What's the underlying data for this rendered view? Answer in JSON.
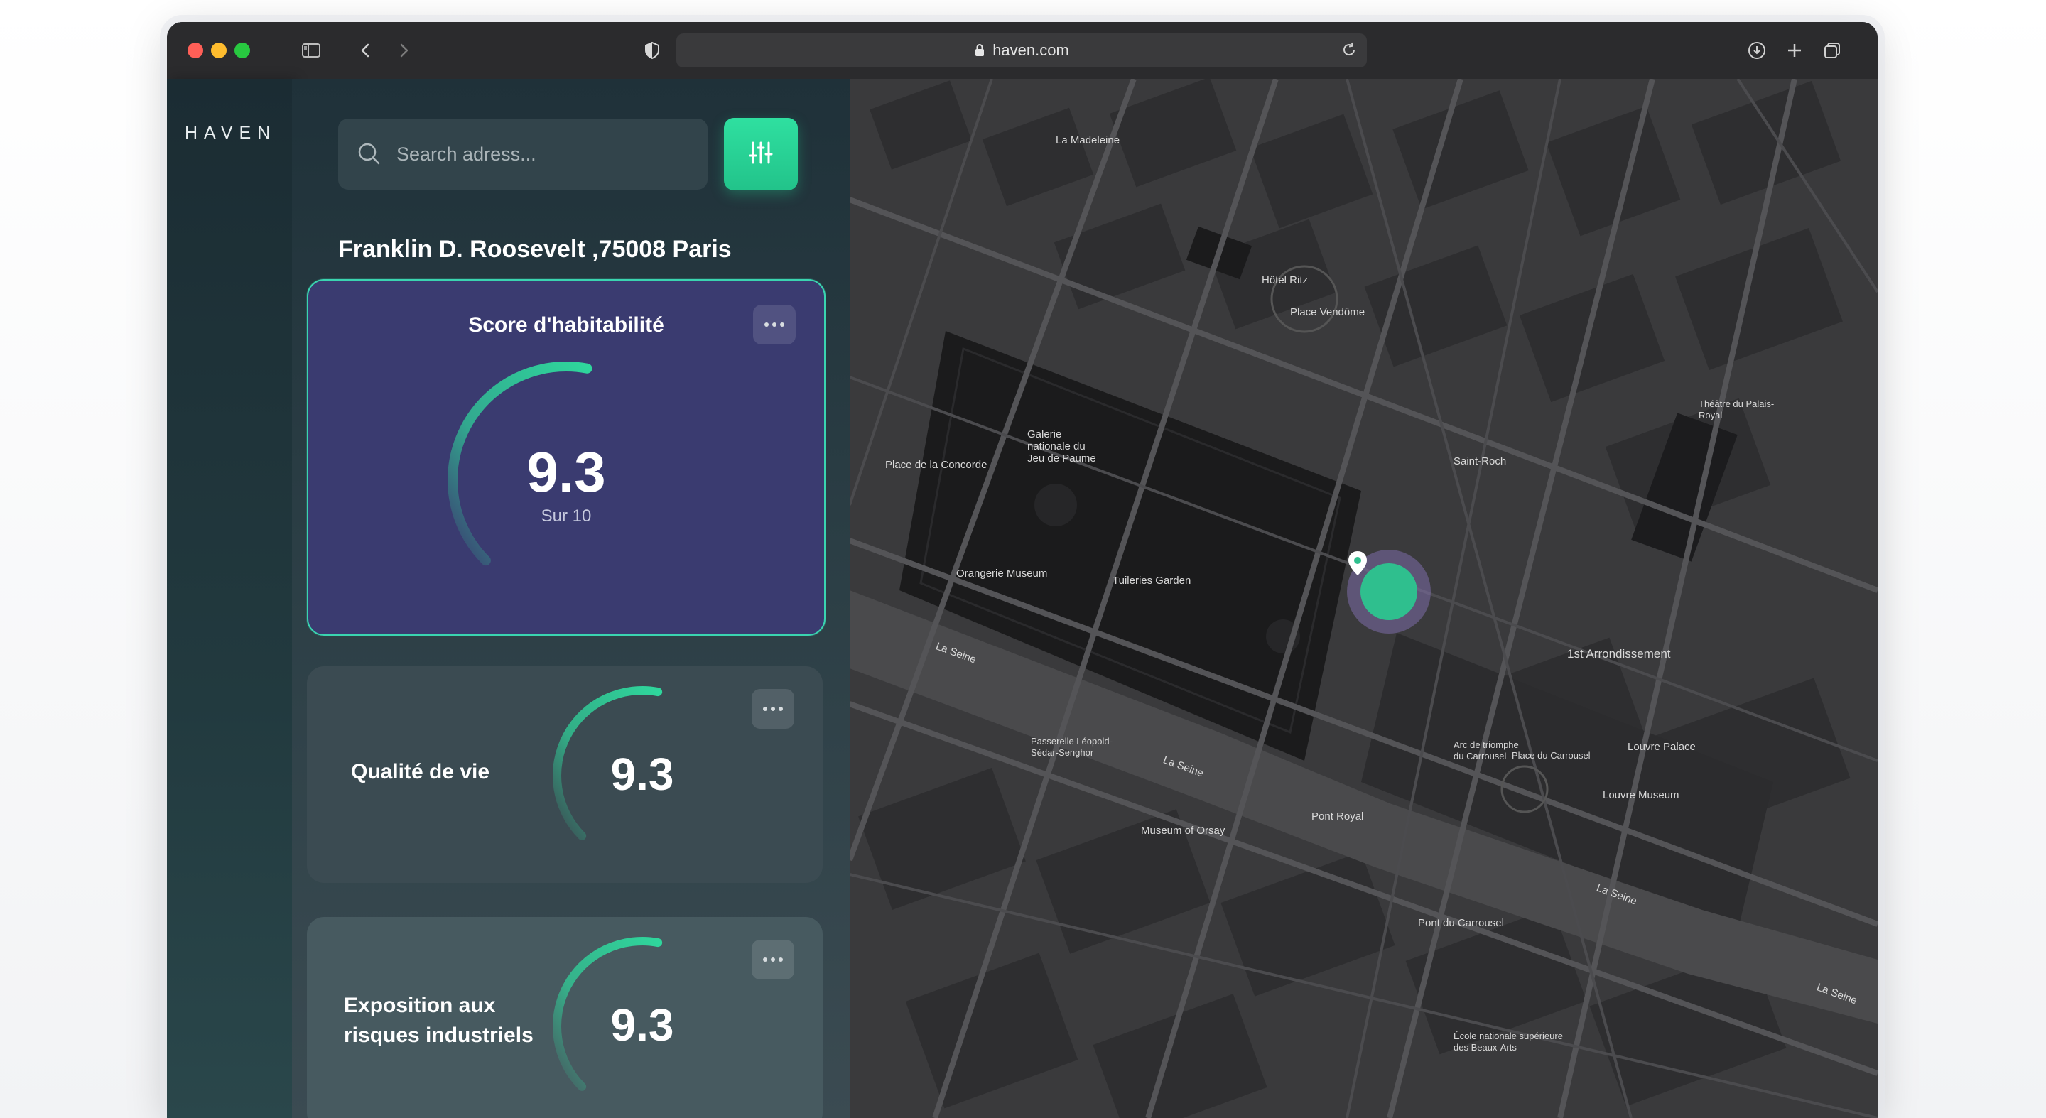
{
  "browser": {
    "url": "haven.com",
    "traffic_lights": {
      "close": "#ff5f57",
      "minimize": "#febc2e",
      "zoom": "#28c840"
    },
    "icons": [
      "sidebar-icon",
      "back-icon",
      "forward-icon",
      "shield-icon",
      "lock-icon",
      "reload-icon",
      "download-icon",
      "new-tab-icon",
      "tabs-overview-icon"
    ]
  },
  "app": {
    "logo": "HAVEN",
    "search": {
      "placeholder": "Search adress..."
    },
    "address": "Franklin D. Roosevelt ,75008 Paris",
    "accent": "#2fd69c",
    "cards": [
      {
        "title": "Score d'habitabilité",
        "score": "9.3",
        "sub": "Sur 10",
        "gauge_fraction": 0.93
      },
      {
        "title": "Qualité de vie",
        "score": "9.3",
        "gauge_fraction": 0.93
      },
      {
        "title": "Exposition aux risques industriels",
        "score": "9.3",
        "gauge_fraction": 0.93
      }
    ]
  },
  "map": {
    "labels": {
      "arrondissement": "1st Arrondissement",
      "tuileries": "Tuileries Garden",
      "orangerie": "Orangerie Museum",
      "jeu_de_paume": "Galerie nationale du Jeu de Paume",
      "seine": "La Seine",
      "louvre": "Louvre Museum",
      "arc": "Arc de triomphe du Carrousel",
      "carrousel": "Place du Carrousel",
      "orsay": "Museum of Orsay",
      "pont_royal": "Pont Royal",
      "passerelle": "Passerelle Léopold-Sédar-Senghor",
      "madeleine": "La Madeleine",
      "concorde": "Place de la Concorde",
      "vendome": "Place Vendôme",
      "hotel_ritz": "Hôtel Ritz",
      "saint_roch": "Saint-Roch",
      "palais_royal": "Théâtre du Palais-Royal",
      "louvre_palace": "Louvre Palace",
      "beaux_arts": "École nationale supérieure des Beaux-Arts",
      "pont_carrousel": "Pont du Carrousel"
    }
  }
}
